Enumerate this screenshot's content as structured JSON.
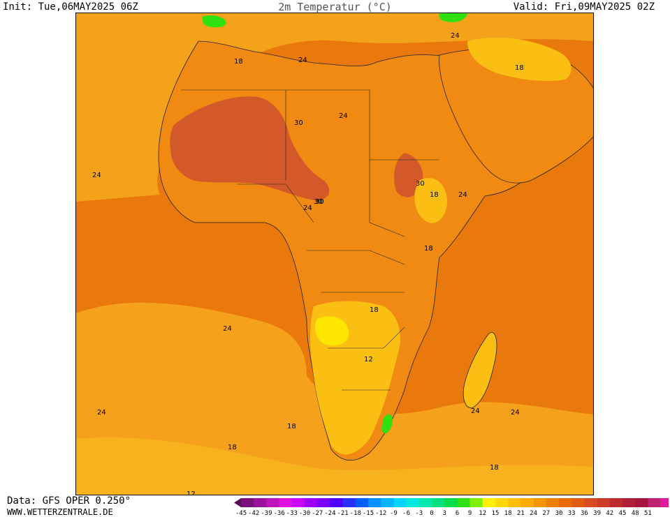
{
  "header": {
    "init": "Init: Tue,06MAY2025 06Z",
    "title": "2m Temperatur (°C)",
    "valid": "Valid: Fri,09MAY2025 02Z"
  },
  "footer": {
    "data_source": "Data: GFS OPER 0.250°",
    "website": "WWW.WETTERZENTRALE.DE"
  },
  "legend": {
    "ticks": [
      "-45",
      "-42",
      "-39",
      "-36",
      "-33",
      "-30",
      "-27",
      "-24",
      "-21",
      "-18",
      "-15",
      "-12",
      "-9",
      "-6",
      "-3",
      "0",
      "3",
      "6",
      "9",
      "12",
      "15",
      "18",
      "21",
      "24",
      "27",
      "30",
      "33",
      "36",
      "39",
      "42",
      "45",
      "48",
      "51"
    ],
    "colors": [
      "#5a0a5a",
      "#7a0f7a",
      "#9c119c",
      "#be12be",
      "#dd10dd",
      "#c800ff",
      "#a000ff",
      "#7a00ff",
      "#5000ff",
      "#2a30ff",
      "#0060ff",
      "#0090ff",
      "#00b4ff",
      "#00d4ff",
      "#00e8e0",
      "#00e8b0",
      "#00e080",
      "#00dc4c",
      "#30e010",
      "#80f000",
      "#fff000",
      "#ffd700",
      "#ffbf00",
      "#ffaa00",
      "#f59500",
      "#ee7f00",
      "#e86a00",
      "#e05a10",
      "#d84a20",
      "#cc3a28",
      "#bf2a30",
      "#b01e38",
      "#a51540",
      "#c02070",
      "#e01c9c",
      "#ff10c0"
    ]
  },
  "map": {
    "contour_labels": [
      "18",
      "24",
      "30",
      "24",
      "30",
      "24",
      "18",
      "24",
      "30",
      "30",
      "24",
      "24",
      "18",
      "18",
      "12",
      "24",
      "24",
      "18",
      "24",
      "18",
      "24",
      "18",
      "18",
      "12"
    ],
    "colors": {
      "ocean_warm": "#e9790c",
      "ocean_cool": "#f5a11c",
      "land_hot": "#f08a12",
      "land_very_hot": "#cf4f24",
      "land_mild": "#fbbf14",
      "land_cool": "#ffe600",
      "highland": "#fdd000",
      "green": "#30e010"
    }
  }
}
